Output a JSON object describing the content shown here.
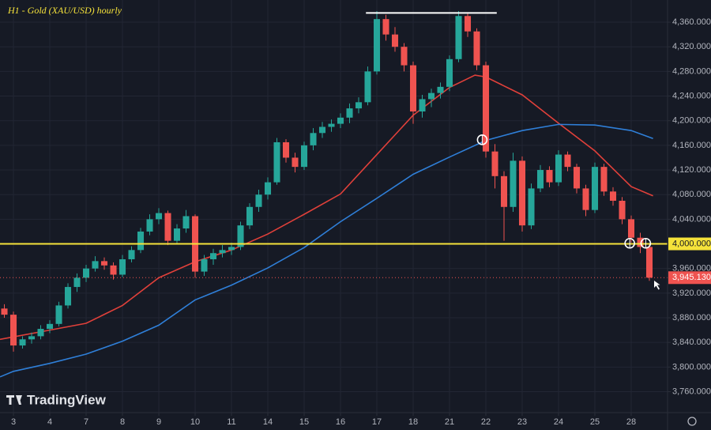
{
  "chart_data": {
    "type": "candlestick",
    "title": "H1 - Gold (XAU/USD) hourly",
    "brand": "TradingView",
    "colors": {
      "background": "#161a25",
      "grid": "#222634",
      "up": "#26a69a",
      "down": "#ef5350",
      "text": "#b2b5be"
    },
    "xlim": [
      -0.37,
      18.0
    ],
    "xticks": [
      {
        "value": 0,
        "label": "3"
      },
      {
        "value": 1,
        "label": "4"
      },
      {
        "value": 2,
        "label": "7"
      },
      {
        "value": 3,
        "label": "8"
      },
      {
        "value": 4,
        "label": "9"
      },
      {
        "value": 5,
        "label": "10"
      },
      {
        "value": 6,
        "label": "11"
      },
      {
        "value": 7,
        "label": "14"
      },
      {
        "value": 8,
        "label": "15"
      },
      {
        "value": 9,
        "label": "16"
      },
      {
        "value": 10,
        "label": "17"
      },
      {
        "value": 11,
        "label": "18"
      },
      {
        "value": 12,
        "label": "21"
      },
      {
        "value": 13,
        "label": "22"
      },
      {
        "value": 14,
        "label": "23"
      },
      {
        "value": 15,
        "label": "24"
      },
      {
        "value": 16,
        "label": "25"
      },
      {
        "value": 17,
        "label": "28"
      }
    ],
    "ylim": [
      3726,
      4396
    ],
    "yticks": [
      {
        "value": 3760,
        "label": "3,760.000"
      },
      {
        "value": 3800,
        "label": "3,800.000"
      },
      {
        "value": 3840,
        "label": "3,840.000"
      },
      {
        "value": 3880,
        "label": "3,880.000"
      },
      {
        "value": 3920,
        "label": "3,920.000"
      },
      {
        "value": 3960,
        "label": "3,960.000"
      },
      {
        "value": 4040,
        "label": "4,040.000"
      },
      {
        "value": 4080,
        "label": "4,080.000"
      },
      {
        "value": 4120,
        "label": "4,120.000"
      },
      {
        "value": 4160,
        "label": "4,160.000"
      },
      {
        "value": 4200,
        "label": "4,200.000"
      },
      {
        "value": 4240,
        "label": "4,240.000"
      },
      {
        "value": 4280,
        "label": "4,280.000"
      },
      {
        "value": 4320,
        "label": "4,320.000"
      },
      {
        "value": 4360,
        "label": "4,360.000"
      }
    ],
    "grid": true,
    "candles": {
      "x": [
        -0.25,
        0,
        0.25,
        0.5,
        0.75,
        1,
        1.25,
        1.5,
        1.75,
        2,
        2.25,
        2.5,
        2.75,
        3,
        3.25,
        3.5,
        3.75,
        4,
        4.25,
        4.5,
        4.75,
        5,
        5.25,
        5.5,
        5.75,
        6,
        6.25,
        6.5,
        6.75,
        7,
        7.25,
        7.5,
        7.75,
        8,
        8.25,
        8.5,
        8.75,
        9,
        9.25,
        9.5,
        9.75,
        10,
        10.25,
        10.5,
        10.75,
        11,
        11.25,
        11.5,
        11.75,
        12,
        12.25,
        12.5,
        12.75,
        13,
        13.25,
        13.5,
        13.75,
        14,
        14.25,
        14.5,
        14.75,
        15,
        15.25,
        15.5,
        15.75,
        16,
        16.25,
        16.5,
        16.75,
        17,
        17.25,
        17.5
      ],
      "ohlc": [
        [
          3895,
          3902,
          3880,
          3885
        ],
        [
          3885,
          3890,
          3825,
          3835
        ],
        [
          3835,
          3850,
          3830,
          3845
        ],
        [
          3845,
          3856,
          3838,
          3850
        ],
        [
          3850,
          3868,
          3845,
          3862
        ],
        [
          3862,
          3876,
          3855,
          3870
        ],
        [
          3870,
          3906,
          3866,
          3900
        ],
        [
          3900,
          3936,
          3895,
          3930
        ],
        [
          3930,
          3952,
          3922,
          3945
        ],
        [
          3945,
          3966,
          3938,
          3960
        ],
        [
          3960,
          3980,
          3955,
          3972
        ],
        [
          3972,
          3978,
          3958,
          3965
        ],
        [
          3965,
          3970,
          3942,
          3950
        ],
        [
          3950,
          3982,
          3946,
          3975
        ],
        [
          3975,
          3996,
          3970,
          3990
        ],
        [
          3990,
          4026,
          3985,
          4020
        ],
        [
          4020,
          4048,
          4014,
          4040
        ],
        [
          4040,
          4058,
          4032,
          4050
        ],
        [
          4050,
          4054,
          3998,
          4005
        ],
        [
          4005,
          4032,
          4000,
          4025
        ],
        [
          4025,
          4055,
          4018,
          4045
        ],
        [
          4045,
          4048,
          3945,
          3955
        ],
        [
          3955,
          3982,
          3948,
          3975
        ],
        [
          3975,
          3992,
          3966,
          3985
        ],
        [
          3985,
          3998,
          3978,
          3990
        ],
        [
          3990,
          4002,
          3982,
          3995
        ],
        [
          3995,
          4036,
          3990,
          4030
        ],
        [
          4030,
          4066,
          4024,
          4060
        ],
        [
          4060,
          4088,
          4052,
          4080
        ],
        [
          4080,
          4108,
          4072,
          4100
        ],
        [
          4100,
          4172,
          4096,
          4165
        ],
        [
          4165,
          4170,
          4132,
          4140
        ],
        [
          4140,
          4148,
          4116,
          4125
        ],
        [
          4125,
          4166,
          4120,
          4160
        ],
        [
          4160,
          4188,
          4152,
          4180
        ],
        [
          4180,
          4198,
          4172,
          4190
        ],
        [
          4190,
          4202,
          4182,
          4195
        ],
        [
          4195,
          4212,
          4188,
          4205
        ],
        [
          4205,
          4228,
          4196,
          4220
        ],
        [
          4220,
          4238,
          4212,
          4230
        ],
        [
          4230,
          4288,
          4225,
          4280
        ],
        [
          4280,
          4378,
          4275,
          4365
        ],
        [
          4365,
          4372,
          4330,
          4340
        ],
        [
          4340,
          4352,
          4312,
          4320
        ],
        [
          4320,
          4326,
          4280,
          4290
        ],
        [
          4290,
          4296,
          4195,
          4215
        ],
        [
          4215,
          4242,
          4205,
          4235
        ],
        [
          4235,
          4252,
          4222,
          4245
        ],
        [
          4245,
          4262,
          4236,
          4255
        ],
        [
          4255,
          4306,
          4248,
          4300
        ],
        [
          4300,
          4378,
          4295,
          4370
        ],
        [
          4370,
          4374,
          4336,
          4345
        ],
        [
          4345,
          4350,
          4282,
          4290
        ],
        [
          4290,
          4296,
          4140,
          4150
        ],
        [
          4150,
          4162,
          4090,
          4110
        ],
        [
          4110,
          4118,
          4005,
          4060
        ],
        [
          4060,
          4148,
          4052,
          4135
        ],
        [
          4135,
          4142,
          4020,
          4030
        ],
        [
          4030,
          4098,
          4024,
          4090
        ],
        [
          4090,
          4128,
          4084,
          4120
        ],
        [
          4120,
          4126,
          4092,
          4100
        ],
        [
          4100,
          4152,
          4094,
          4145
        ],
        [
          4145,
          4150,
          4118,
          4125
        ],
        [
          4125,
          4130,
          4082,
          4090
        ],
        [
          4090,
          4096,
          4045,
          4055
        ],
        [
          4055,
          4132,
          4050,
          4125
        ],
        [
          4125,
          4130,
          4078,
          4085
        ],
        [
          4085,
          4092,
          4062,
          4070
        ],
        [
          4070,
          4076,
          4032,
          4040
        ],
        [
          4040,
          4046,
          4002,
          4010
        ],
        [
          4010,
          4018,
          3985,
          3995
        ],
        [
          3995,
          4000,
          3940,
          3945.13
        ]
      ]
    },
    "series": [
      {
        "color": "#e0403a",
        "x": [
          -0.37,
          0,
          1,
          2,
          3,
          4,
          5,
          6,
          7,
          8,
          9,
          10,
          11,
          12,
          12.7,
          13,
          14,
          15,
          16,
          17,
          17.6
        ],
        "values": [
          3845,
          3849,
          3860,
          3871,
          3900,
          3945,
          3971,
          3990,
          4016,
          4048,
          4081,
          4145,
          4209,
          4254,
          4274,
          4271,
          4242,
          4196,
          4151,
          4093,
          4078
        ]
      },
      {
        "color": "#2f7fd8",
        "x": [
          -0.37,
          0,
          1,
          2,
          3,
          4,
          5,
          6,
          7,
          8,
          9,
          10,
          11,
          12,
          13,
          14,
          15,
          16,
          17,
          17.6
        ],
        "values": [
          3784,
          3793,
          3806,
          3821,
          3842,
          3868,
          3909,
          3933,
          3961,
          3994,
          4036,
          4074,
          4113,
          4141,
          4168,
          4184,
          4194,
          4193,
          4184,
          4171
        ]
      }
    ],
    "hline": {
      "value": 4000,
      "label": "4,000.000",
      "color": "#f5e23a"
    },
    "last_price": {
      "value": 3945.13,
      "label": "3,945.130",
      "color": "#ef5350"
    },
    "resistance": {
      "x": [
        9.7,
        13.3
      ],
      "value": 4375,
      "color": "#ffffff"
    },
    "circles": [
      {
        "x": 12.9,
        "y": 4169
      },
      {
        "x": 16.96,
        "y": 4001
      },
      {
        "x": 17.4,
        "y": 4001
      }
    ]
  }
}
